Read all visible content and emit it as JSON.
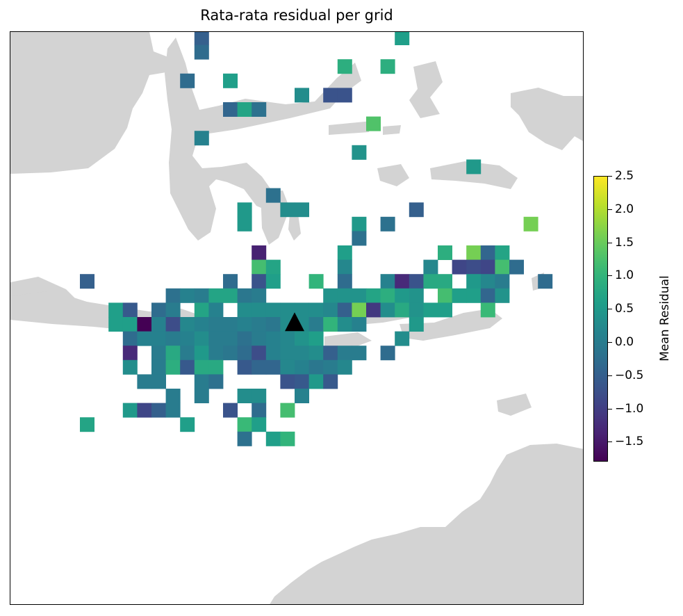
{
  "title": "Rata-rata residual per grid",
  "colorbar": {
    "label": "Mean Residual",
    "min": -1.8,
    "max": 2.5,
    "ticks": [
      "2.5",
      "2.0",
      "1.5",
      "1.0",
      "0.5",
      "0.0",
      "−0.5",
      "−1.0",
      "−1.5"
    ],
    "tick_values": [
      2.5,
      2.0,
      1.5,
      1.0,
      0.5,
      0.0,
      -0.5,
      -1.0,
      -1.5
    ],
    "colormap": "viridis"
  },
  "colors": {
    "land": "#d3d3d3",
    "frame": "#000000",
    "marker": "#000000"
  },
  "marker": {
    "shape": "triangle",
    "color": "#000000"
  },
  "chart_data": {
    "type": "heatmap",
    "title": "Rata-rata residual per grid",
    "colorbar_label": "Mean Residual",
    "value_range": [
      -1.8,
      2.5
    ],
    "cells": [
      [
        13,
        0,
        -0.5
      ],
      [
        27,
        0,
        0.6
      ],
      [
        13,
        1,
        -0.3
      ],
      [
        23,
        2,
        0.9
      ],
      [
        26,
        2,
        0.9
      ],
      [
        12,
        3,
        -0.3
      ],
      [
        15,
        3,
        0.6
      ],
      [
        20,
        4,
        0.3
      ],
      [
        22,
        4,
        -0.7
      ],
      [
        23,
        4,
        -0.7
      ],
      [
        15,
        5,
        -0.4
      ],
      [
        16,
        5,
        0.7
      ],
      [
        17,
        5,
        -0.2
      ],
      [
        25,
        6,
        1.3
      ],
      [
        13,
        7,
        0.1
      ],
      [
        24,
        8,
        0.4
      ],
      [
        32,
        9,
        0.5
      ],
      [
        18,
        11,
        -0.2
      ],
      [
        16,
        12,
        0.5
      ],
      [
        19,
        12,
        0.3
      ],
      [
        20,
        12,
        0.3
      ],
      [
        28,
        12,
        -0.5
      ],
      [
        16,
        13,
        0.5
      ],
      [
        24,
        13,
        0.5
      ],
      [
        26,
        13,
        -0.2
      ],
      [
        36,
        13,
        1.6
      ],
      [
        24,
        14,
        -0.2
      ],
      [
        17,
        15,
        -1.4
      ],
      [
        23,
        15,
        0.6
      ],
      [
        30,
        15,
        0.9
      ],
      [
        32,
        15,
        1.6
      ],
      [
        33,
        15,
        -0.4
      ],
      [
        34,
        15,
        0.7
      ],
      [
        17,
        16,
        1.2
      ],
      [
        18,
        16,
        0.7
      ],
      [
        23,
        16,
        0.2
      ],
      [
        29,
        16,
        0.2
      ],
      [
        31,
        16,
        -0.9
      ],
      [
        32,
        16,
        -0.8
      ],
      [
        33,
        16,
        -0.9
      ],
      [
        34,
        16,
        1.2
      ],
      [
        35,
        16,
        -0.3
      ],
      [
        5,
        17,
        -0.5
      ],
      [
        15,
        17,
        -0.3
      ],
      [
        17,
        17,
        -0.7
      ],
      [
        18,
        17,
        0.6
      ],
      [
        21,
        17,
        1.0
      ],
      [
        23,
        17,
        -0.3
      ],
      [
        26,
        17,
        0.1
      ],
      [
        27,
        17,
        -1.3
      ],
      [
        28,
        17,
        -0.7
      ],
      [
        29,
        17,
        0.8
      ],
      [
        30,
        17,
        0.8
      ],
      [
        32,
        17,
        0.5
      ],
      [
        33,
        17,
        0.2
      ],
      [
        34,
        17,
        0.0
      ],
      [
        37,
        17,
        -0.3
      ],
      [
        11,
        18,
        -0.2
      ],
      [
        12,
        18,
        0.1
      ],
      [
        13,
        18,
        0.0
      ],
      [
        14,
        18,
        0.7
      ],
      [
        15,
        18,
        0.7
      ],
      [
        16,
        18,
        -0.1
      ],
      [
        17,
        18,
        0.0
      ],
      [
        22,
        18,
        0.4
      ],
      [
        23,
        18,
        0.4
      ],
      [
        24,
        18,
        0.4
      ],
      [
        25,
        18,
        0.7
      ],
      [
        26,
        18,
        0.9
      ],
      [
        27,
        18,
        0.5
      ],
      [
        28,
        18,
        0.4
      ],
      [
        30,
        18,
        1.2
      ],
      [
        31,
        18,
        0.6
      ],
      [
        32,
        18,
        0.6
      ],
      [
        33,
        18,
        -0.4
      ],
      [
        34,
        18,
        0.4
      ],
      [
        7,
        19,
        0.6
      ],
      [
        8,
        19,
        -0.6
      ],
      [
        10,
        19,
        -0.3
      ],
      [
        11,
        19,
        0.0
      ],
      [
        13,
        19,
        0.7
      ],
      [
        14,
        19,
        0.1
      ],
      [
        16,
        19,
        0.3
      ],
      [
        17,
        19,
        0.3
      ],
      [
        18,
        19,
        0.3
      ],
      [
        19,
        19,
        0.3
      ],
      [
        20,
        19,
        0.3
      ],
      [
        21,
        19,
        0.3
      ],
      [
        22,
        19,
        0.2
      ],
      [
        23,
        19,
        -0.5
      ],
      [
        24,
        19,
        1.6
      ],
      [
        25,
        19,
        -1.1
      ],
      [
        26,
        19,
        0.3
      ],
      [
        27,
        19,
        0.8
      ],
      [
        28,
        19,
        0.4
      ],
      [
        29,
        19,
        0.6
      ],
      [
        30,
        19,
        0.6
      ],
      [
        33,
        19,
        1.1
      ],
      [
        7,
        20,
        0.6
      ],
      [
        8,
        20,
        0.6
      ],
      [
        9,
        20,
        -1.9
      ],
      [
        10,
        20,
        0.1
      ],
      [
        11,
        20,
        -0.8
      ],
      [
        12,
        20,
        0.2
      ],
      [
        13,
        20,
        0.1
      ],
      [
        14,
        20,
        0.0
      ],
      [
        15,
        20,
        0.0
      ],
      [
        16,
        20,
        0.1
      ],
      [
        17,
        20,
        0.0
      ],
      [
        18,
        20,
        -0.1
      ],
      [
        19,
        20,
        0.3
      ],
      [
        20,
        20,
        0.3
      ],
      [
        21,
        20,
        0.0
      ],
      [
        22,
        20,
        1.0
      ],
      [
        23,
        20,
        0.3
      ],
      [
        24,
        20,
        0.1
      ],
      [
        28,
        20,
        0.5
      ],
      [
        8,
        21,
        -0.3
      ],
      [
        9,
        21,
        0.1
      ],
      [
        10,
        21,
        0.1
      ],
      [
        11,
        21,
        0.0
      ],
      [
        12,
        21,
        0.1
      ],
      [
        13,
        21,
        0.3
      ],
      [
        14,
        21,
        0.0
      ],
      [
        15,
        21,
        0.0
      ],
      [
        16,
        21,
        -0.2
      ],
      [
        17,
        21,
        0.0
      ],
      [
        18,
        21,
        0.1
      ],
      [
        19,
        21,
        0.2
      ],
      [
        20,
        21,
        0.4
      ],
      [
        21,
        21,
        0.6
      ],
      [
        27,
        21,
        0.3
      ],
      [
        8,
        22,
        -1.3
      ],
      [
        10,
        22,
        0.0
      ],
      [
        11,
        22,
        0.8
      ],
      [
        12,
        22,
        0.0
      ],
      [
        13,
        22,
        0.5
      ],
      [
        14,
        22,
        0.0
      ],
      [
        15,
        22,
        -0.1
      ],
      [
        16,
        22,
        -0.3
      ],
      [
        17,
        22,
        -0.8
      ],
      [
        18,
        22,
        0.1
      ],
      [
        19,
        22,
        0.2
      ],
      [
        20,
        22,
        0.2
      ],
      [
        21,
        22,
        0.3
      ],
      [
        22,
        22,
        -0.5
      ],
      [
        23,
        22,
        0.0
      ],
      [
        24,
        22,
        0.0
      ],
      [
        26,
        22,
        -0.3
      ],
      [
        8,
        23,
        0.3
      ],
      [
        10,
        23,
        0.0
      ],
      [
        11,
        23,
        0.9
      ],
      [
        12,
        23,
        -0.6
      ],
      [
        13,
        23,
        0.8
      ],
      [
        14,
        23,
        0.8
      ],
      [
        16,
        23,
        -0.6
      ],
      [
        17,
        23,
        -0.4
      ],
      [
        18,
        23,
        -0.4
      ],
      [
        19,
        23,
        0.2
      ],
      [
        20,
        23,
        0.1
      ],
      [
        21,
        23,
        -0.1
      ],
      [
        22,
        23,
        0.0
      ],
      [
        23,
        23,
        0.2
      ],
      [
        9,
        24,
        0.0
      ],
      [
        10,
        24,
        0.0
      ],
      [
        13,
        24,
        0.0
      ],
      [
        14,
        24,
        -0.2
      ],
      [
        19,
        24,
        -0.7
      ],
      [
        20,
        24,
        -0.6
      ],
      [
        21,
        24,
        0.5
      ],
      [
        22,
        24,
        -0.6
      ],
      [
        11,
        25,
        0.0
      ],
      [
        13,
        25,
        0.0
      ],
      [
        16,
        25,
        0.3
      ],
      [
        17,
        25,
        0.3
      ],
      [
        20,
        25,
        0.1
      ],
      [
        8,
        26,
        0.5
      ],
      [
        9,
        26,
        -0.9
      ],
      [
        10,
        26,
        -0.5
      ],
      [
        11,
        26,
        0.0
      ],
      [
        15,
        26,
        -0.7
      ],
      [
        17,
        26,
        -0.3
      ],
      [
        19,
        26,
        1.2
      ],
      [
        5,
        27,
        0.7
      ],
      [
        12,
        27,
        0.6
      ],
      [
        16,
        27,
        1.1
      ],
      [
        17,
        27,
        0.6
      ],
      [
        16,
        28,
        -0.2
      ],
      [
        18,
        28,
        0.6
      ],
      [
        19,
        28,
        1.0
      ]
    ],
    "marker": {
      "type": "triangle",
      "grid_col": 19.5,
      "grid_row": 20
    }
  }
}
